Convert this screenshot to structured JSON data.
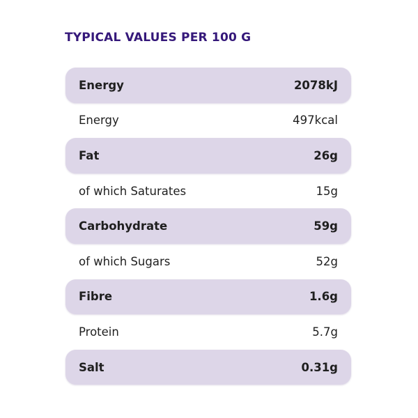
{
  "header": {
    "title": "TYPICAL VALUES PER 100 G"
  },
  "table": {
    "rows": [
      [
        "Energy",
        "2078kJ"
      ],
      [
        "Energy",
        "497kcal"
      ],
      [
        "Fat",
        "26g"
      ],
      [
        "of which Saturates",
        "15g"
      ],
      [
        "Carbohydrate",
        "59g"
      ],
      [
        "of which Sugars",
        "52g"
      ],
      [
        "Fibre",
        "1.6g"
      ],
      [
        "Protein",
        "5.7g"
      ],
      [
        "Salt",
        "0.31g"
      ]
    ]
  }
}
